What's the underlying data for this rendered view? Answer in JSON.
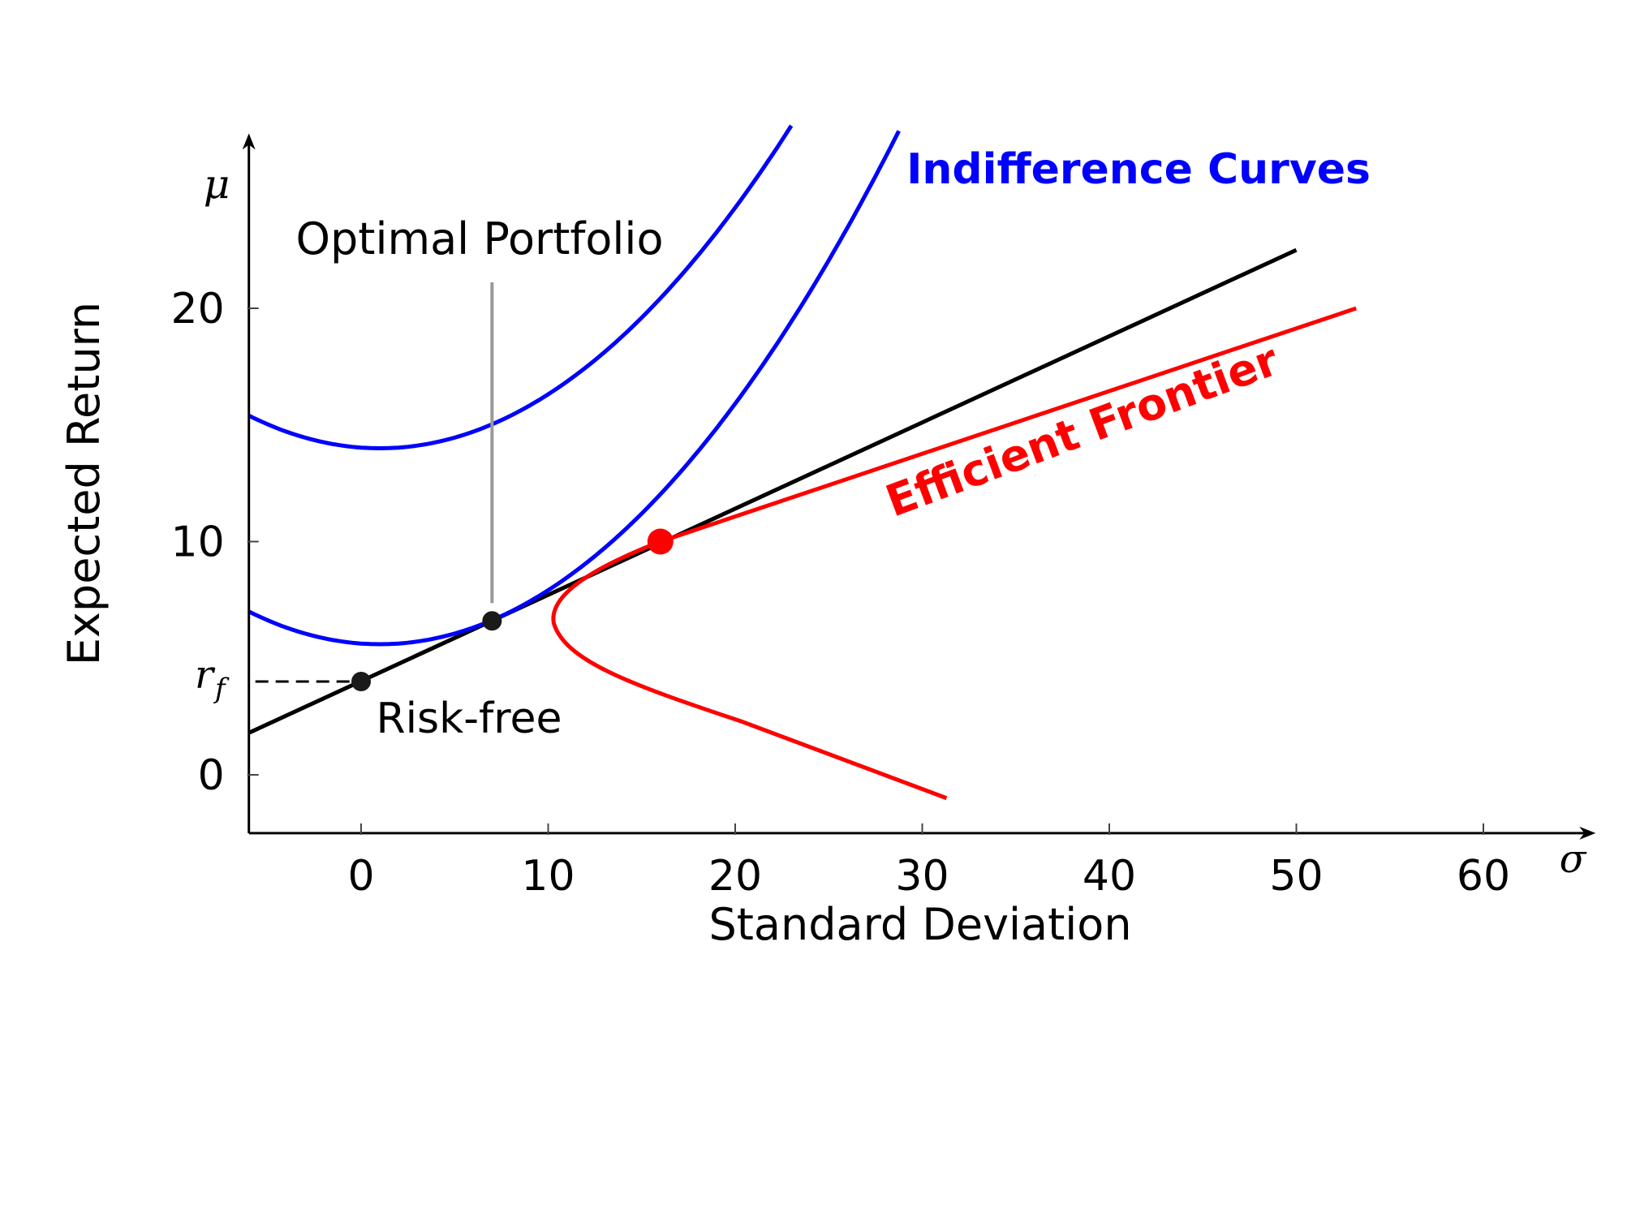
{
  "chart_data": {
    "type": "line",
    "xlabel": "Standard Deviation",
    "ylabel": "Expected Return",
    "x_axis_symbol": "σ",
    "y_axis_symbol": "μ",
    "xlim": [
      -6,
      66
    ],
    "ylim": [
      -2.5,
      27.5
    ],
    "x_ticks": [
      0,
      10,
      20,
      30,
      40,
      50,
      60
    ],
    "y_ticks": [
      0,
      10,
      20
    ],
    "grid": false,
    "risk_free_rate": 4,
    "risk_free_label_symbol": "r",
    "risk_free_label_subscript": "f",
    "series": [
      {
        "name": "Efficient Frontier",
        "color": "#ff0000",
        "frontier": {
          "min_variance_point": [
            10.3,
            6.5
          ],
          "tangent_point": [
            16,
            10
          ],
          "s_top": [
            53.2,
            20
          ],
          "s_bottom": [
            31.3,
            -1
          ]
        }
      },
      {
        "name": "Indifference Curves",
        "color": "#0000ff",
        "curves": [
          {
            "vertex": [
              1,
              14
            ],
            "passes_through": [
              -6,
              15.4
            ]
          },
          {
            "vertex": [
              1,
              5.6
            ],
            "passes_through": [
              -6,
              7
            ]
          }
        ]
      },
      {
        "color": "#000000",
        "line": {
          "from": [
            -6,
            1.8
          ],
          "to": [
            50,
            22.5
          ]
        }
      }
    ],
    "points": [
      {
        "label": "Risk-free",
        "x": 0,
        "y": 4,
        "color": "#1a1a1a"
      },
      {
        "label": "Optimal Portfolio",
        "x": 7,
        "y": 6.6,
        "color": "#1a1a1a"
      },
      {
        "x": 16,
        "y": 10,
        "color": "#ff0000"
      }
    ],
    "annotations": {
      "optimal_portfolio": "Optimal Portfolio",
      "risk_free": "Risk-free",
      "efficient_frontier": "Efficient Frontier",
      "indifference_curves": "Indifference Curves"
    }
  }
}
